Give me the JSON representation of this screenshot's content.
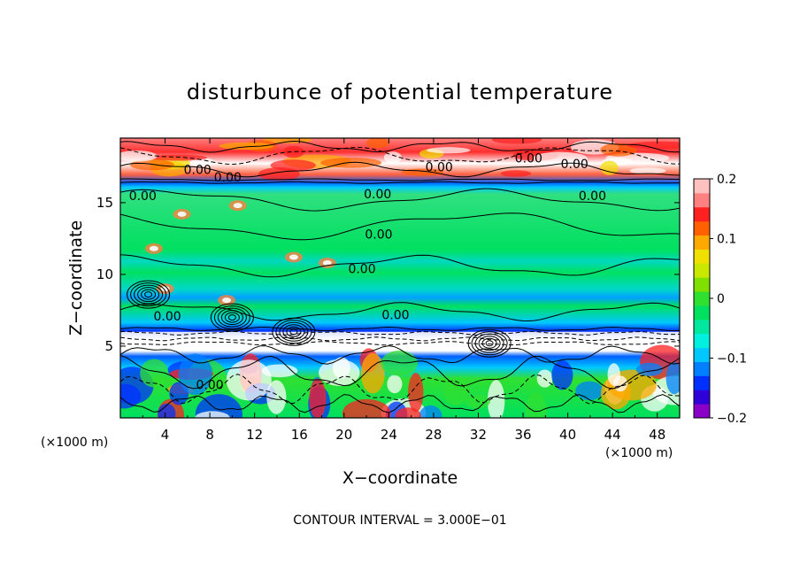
{
  "chart_data": {
    "type": "heatmap",
    "title": "disturbunce of potential temperature",
    "xlabel": "X−coordinate",
    "ylabel": "Z−coordinate",
    "x_unit_label": "(×1000 m)",
    "z_unit_label": "(×1000 m)",
    "footer": "CONTOUR INTERVAL = 3.000E−01",
    "xlim": [
      0,
      50
    ],
    "ylim": [
      0,
      19.5
    ],
    "xticks": [
      4,
      8,
      12,
      16,
      20,
      24,
      28,
      32,
      36,
      40,
      44,
      48
    ],
    "yticks": [
      5,
      10,
      15
    ],
    "colorbar": {
      "ticks": [
        "0.2",
        "0.1",
        "0",
        "−0.1",
        "−0.2"
      ],
      "tick_values": [
        0.2,
        0.1,
        0,
        -0.1,
        -0.2
      ],
      "range": [
        -0.2,
        0.2
      ],
      "colors": [
        "#8a00c8",
        "#3000d8",
        "#0030ff",
        "#0080ff",
        "#00c8ff",
        "#00f0e0",
        "#00e8a0",
        "#00e060",
        "#30e030",
        "#80e000",
        "#c8e800",
        "#f0e000",
        "#ffa800",
        "#ff6000",
        "#ff2020",
        "#ff8080",
        "#ffc0c0"
      ]
    },
    "contour_labels": [
      {
        "text": "0.00",
        "x": 6.9,
        "z": 17.3
      },
      {
        "text": "0.00",
        "x": 9.6,
        "z": 16.8
      },
      {
        "text": "0.00",
        "x": 28.5,
        "z": 17.5
      },
      {
        "text": "0.00",
        "x": 36.5,
        "z": 18.1
      },
      {
        "text": "0.00",
        "x": 40.6,
        "z": 17.7
      },
      {
        "text": "0.00",
        "x": 2.0,
        "z": 15.5
      },
      {
        "text": "0.00",
        "x": 23.0,
        "z": 15.6
      },
      {
        "text": "0.00",
        "x": 42.2,
        "z": 15.5
      },
      {
        "text": "0.00",
        "x": 23.1,
        "z": 12.8
      },
      {
        "text": "0.00",
        "x": 21.6,
        "z": 10.4
      },
      {
        "text": "0.00",
        "x": 24.6,
        "z": 7.2
      },
      {
        "text": "0.00",
        "x": 4.2,
        "z": 7.1
      },
      {
        "text": "0.00",
        "x": 8.0,
        "z": 2.3
      }
    ]
  },
  "colors": {
    "background": "#00e060",
    "upper_band": "#ff2020",
    "tropopause_band": "#00c8ff",
    "lower_band": "#0030ff"
  }
}
